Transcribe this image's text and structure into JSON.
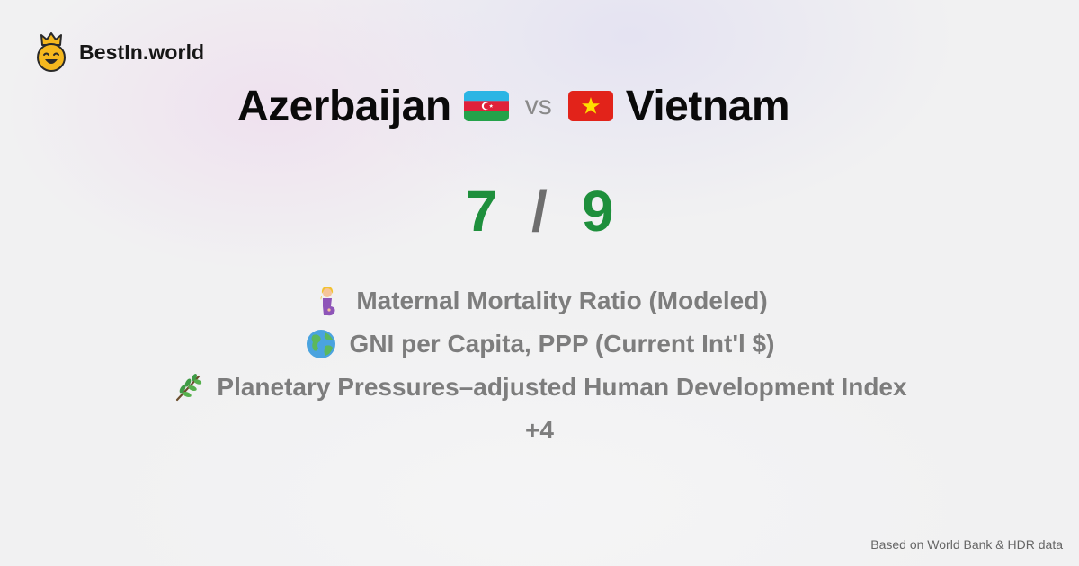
{
  "brand": {
    "name": "BestIn.world",
    "logo_icon": "crowned-smiley-icon"
  },
  "comparison": {
    "country_a": {
      "name": "Azerbaijan",
      "flag_icon": "azerbaijan-flag-icon"
    },
    "vs_label": "vs",
    "country_b": {
      "name": "Vietnam",
      "flag_icon": "vietnam-flag-icon"
    }
  },
  "score": {
    "a": "7",
    "separator": "/",
    "b": "9",
    "color": "#1e8f3c"
  },
  "metrics": [
    {
      "icon": "pregnant-woman-icon",
      "label": "Maternal Mortality Ratio (Modeled)"
    },
    {
      "icon": "globe-icon",
      "label": "GNI per Capita, PPP (Current Int'l $)"
    },
    {
      "icon": "herb-icon",
      "label": "Planetary Pressures–adjusted Human Development Index"
    }
  ],
  "more_label": "+4",
  "footnote": "Based on World Bank & HDR data"
}
